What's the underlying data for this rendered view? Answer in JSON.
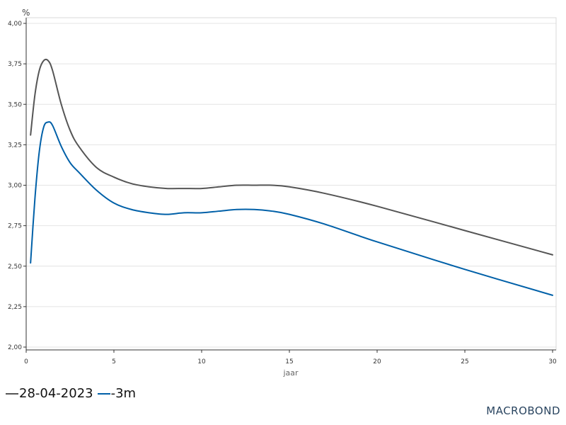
{
  "chart_data": {
    "type": "line",
    "unit": "%",
    "xlabel": "jaar",
    "xlim": [
      0,
      30.2
    ],
    "ylim": [
      2.0,
      4.0
    ],
    "x_ticks": [
      0,
      5,
      10,
      15,
      20,
      25,
      30
    ],
    "y_ticks": [
      2.0,
      2.25,
      2.5,
      2.75,
      3.0,
      3.25,
      3.5,
      3.75,
      4.0
    ],
    "y_tick_labels": [
      "2,00",
      "2,25",
      "2,50",
      "2,75",
      "3,00",
      "3,25",
      "3,50",
      "3,75",
      "4,00"
    ],
    "grid": "horizontal",
    "legend_position": "bottom-left",
    "series": [
      {
        "name": "28-04-2023",
        "color": "#555555",
        "x": [
          0.25,
          0.5,
          0.75,
          1,
          1.25,
          1.5,
          2,
          2.5,
          3,
          4,
          5,
          6,
          7,
          8,
          9,
          10,
          11,
          12,
          13,
          14,
          15,
          17,
          20,
          25,
          30
        ],
        "y": [
          3.31,
          3.56,
          3.71,
          3.77,
          3.77,
          3.71,
          3.5,
          3.34,
          3.24,
          3.11,
          3.05,
          3.01,
          2.99,
          2.98,
          2.98,
          2.98,
          2.99,
          3.0,
          3.0,
          3.0,
          2.99,
          2.95,
          2.87,
          2.72,
          2.57
        ]
      },
      {
        "name": "-3m",
        "color": "#0060a8",
        "x": [
          0.25,
          0.5,
          0.75,
          1,
          1.25,
          1.5,
          2,
          2.5,
          3,
          4,
          5,
          6,
          7,
          8,
          9,
          10,
          11,
          12,
          13,
          14,
          15,
          17,
          20,
          25,
          30
        ],
        "y": [
          2.52,
          2.92,
          3.21,
          3.36,
          3.39,
          3.37,
          3.24,
          3.14,
          3.08,
          2.97,
          2.89,
          2.85,
          2.83,
          2.82,
          2.83,
          2.83,
          2.84,
          2.85,
          2.85,
          2.84,
          2.82,
          2.76,
          2.65,
          2.48,
          2.32
        ]
      }
    ]
  },
  "legend": {
    "item1": "28-04-2023",
    "item2": "-3m"
  },
  "brand": "MACROBOND"
}
